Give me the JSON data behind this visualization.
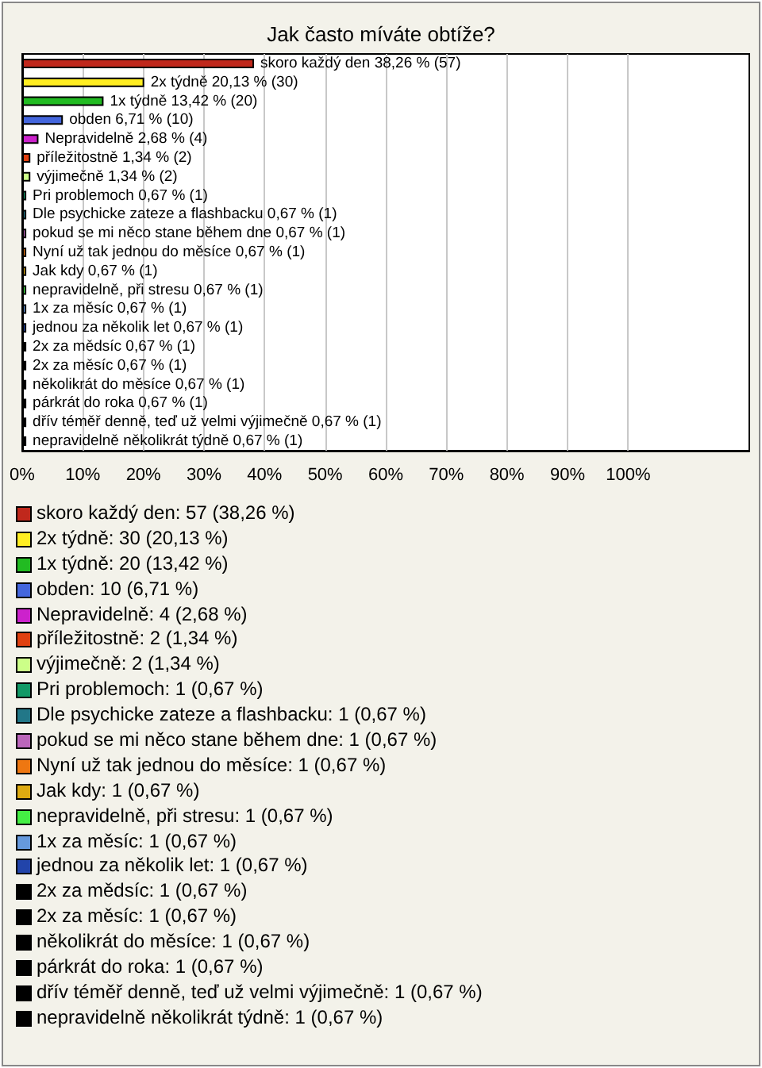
{
  "chart_data": {
    "type": "bar",
    "orientation": "horizontal",
    "title": "Jak často míváte obtíže?",
    "categories": [
      null,
      null,
      null,
      null,
      null,
      null,
      null,
      null,
      null,
      null,
      null,
      null,
      null,
      null,
      null,
      null,
      null,
      null,
      null,
      null,
      null
    ],
    "values": [
      38.26,
      20.13,
      13.42,
      6.71,
      2.68,
      1.34,
      1.34,
      0.67,
      0.67,
      0.67,
      0.67,
      0.67,
      0.67,
      0.67,
      0.67,
      0.67,
      0.67,
      0.67,
      0.67,
      0.67,
      0.67
    ],
    "colors": [
      "#c0281c",
      "#ffee22",
      "#22bb22",
      "#4466dd",
      "#cc22cc",
      "#e04010",
      "#ccff88",
      "#119966",
      "#227788",
      "#bb66bb",
      "#ee7711",
      "#ddaa11",
      "#44ee44",
      "#6699dd",
      "#2244aa",
      "#000000",
      "#000000",
      "#000000",
      "#000000",
      "#000000",
      "#000000"
    ],
    "value_labels": [
      "skoro každý den 38,26 % (57)",
      "2x týdně 20,13 % (30)",
      "1x týdně 13,42 % (20)",
      "obden 6,71 % (10)",
      "Nepravidelně 2,68 % (4)",
      "příležitostně 1,34 % (2)",
      "výjimečně 1,34 % (2)",
      "Pri problemoch 0,67 % (1)",
      "Dle psychicke zateze a flashbacku 0,67 % (1)",
      "pokud se mi něco stane během dne 0,67 % (1)",
      "Nyní už tak jednou do měsíce 0,67 % (1)",
      "Jak kdy 0,67 % (1)",
      "nepravidelně, při stresu 0,67 % (1)",
      "1x za měsíc 0,67 % (1)",
      "jednou za několik let 0,67 % (1)",
      "2x za mědsíc 0,67 % (1)",
      "2x za měsíc 0,67 % (1)",
      "několikrát do měsíce 0,67 % (1)",
      "párkrát do roka 0,67 % (1)",
      "dřív téměř denně, teď už velmi výjimečně 0,67 % (1)",
      "nepravidelně několikrát týdně 0,67 % (1)"
    ],
    "annotations": [
      "skoro každý den: 57 (38,26 %)",
      "2x týdně: 30 (20,13 %)",
      "1x týdně: 20 (13,42 %)",
      "obden: 10 (6,71 %)",
      "Nepravidelně: 4 (2,68 %)",
      "příležitostně: 2 (1,34 %)",
      "výjimečně: 2 (1,34 %)",
      "Pri problemoch: 1 (0,67 %)",
      "Dle psychicke zateze a flashbacku: 1 (0,67 %)",
      "pokud se mi něco stane během dne: 1 (0,67 %)",
      "Nyní už tak jednou do měsíce: 1 (0,67 %)",
      "Jak kdy: 1 (0,67 %)",
      "nepravidelně, při stresu: 1 (0,67 %)",
      "1x za měsíc: 1 (0,67 %)",
      "jednou za několik let: 1 (0,67 %)",
      "2x za mědsíc: 1 (0,67 %)",
      "2x za měsíc: 1 (0,67 %)",
      "několikrát do měsíce: 1 (0,67 %)",
      "párkrát do roka: 1 (0,67 %)",
      "dřív téměř denně, teď už velmi výjimečně: 1 (0,67 %)",
      "nepravidelně několikrát týdně: 1 (0,67 %)"
    ],
    "xlim": [
      0,
      120
    ],
    "xticks": [
      {
        "value": 0,
        "label": "0%"
      },
      {
        "value": 10,
        "label": "10%"
      },
      {
        "value": 20,
        "label": "20%"
      },
      {
        "value": 30,
        "label": "30%"
      },
      {
        "value": 40,
        "label": "40%"
      },
      {
        "value": 50,
        "label": "50%"
      },
      {
        "value": 60,
        "label": "60%"
      },
      {
        "value": 70,
        "label": "70%"
      },
      {
        "value": 80,
        "label": "80%"
      },
      {
        "value": 90,
        "label": "90%"
      },
      {
        "value": 100,
        "label": "100%"
      }
    ],
    "grid": "x"
  }
}
